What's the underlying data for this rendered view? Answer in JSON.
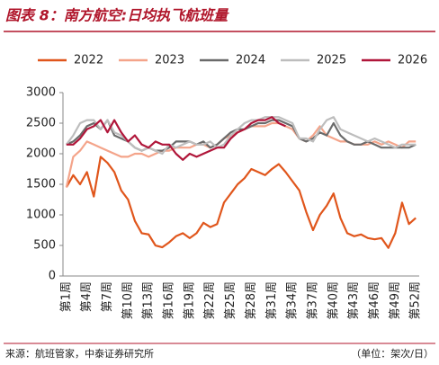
{
  "chart_data": {
    "type": "line",
    "title": "图表 8：南方航空:日均执飞航班量",
    "source": "来源：航班管家，中泰证券研究所",
    "unit_note": "（单位：架次/日）",
    "categories": [
      "第1周",
      null,
      null,
      "第4周",
      null,
      null,
      "第7周",
      null,
      null,
      "第10周",
      null,
      null,
      "第13周",
      null,
      null,
      "第16周",
      null,
      null,
      "第19周",
      null,
      null,
      "第22周",
      null,
      null,
      "第25周",
      null,
      null,
      "第28周",
      null,
      null,
      "第31周",
      null,
      null,
      "第34周",
      null,
      null,
      "第37周",
      null,
      null,
      "第40周",
      null,
      null,
      "第43周",
      null,
      null,
      "第46周",
      null,
      null,
      "第49周",
      null,
      null,
      "第52周"
    ],
    "ylim": [
      0,
      3000
    ],
    "yticks": [
      0,
      500,
      1000,
      1500,
      2000,
      2500,
      3000
    ],
    "grid": false,
    "series": [
      {
        "name": "2022",
        "color": "#e0561c",
        "values": [
          1450,
          1650,
          1500,
          1700,
          1300,
          1950,
          1850,
          1700,
          1400,
          1250,
          900,
          700,
          680,
          500,
          470,
          550,
          650,
          700,
          620,
          700,
          870,
          800,
          850,
          1200,
          1350,
          1500,
          1600,
          1750,
          1700,
          1650,
          1750,
          1830,
          1700,
          1550,
          1400,
          1050,
          750,
          1000,
          1150,
          1350,
          950,
          700,
          650,
          680,
          620,
          600,
          620,
          460,
          700,
          1200,
          850,
          950
        ]
      },
      {
        "name": "2023",
        "color": "#f4a48a",
        "values": [
          1450,
          1950,
          2050,
          2200,
          2150,
          2100,
          2050,
          2000,
          1950,
          1950,
          2000,
          2000,
          1950,
          2000,
          2050,
          2050,
          2100,
          2100,
          2100,
          2150,
          2150,
          2100,
          2150,
          2250,
          2300,
          2350,
          2400,
          2450,
          2450,
          2450,
          2500,
          2500,
          2450,
          2400,
          2250,
          2200,
          2300,
          2450,
          2300,
          2250,
          2200,
          2200,
          2150,
          2150,
          2150,
          2200,
          2150,
          2200,
          2150,
          2100,
          2200,
          2200
        ]
      },
      {
        "name": "2024",
        "color": "#6b6b6b",
        "values": [
          2150,
          2200,
          2300,
          2450,
          2500,
          2400,
          2550,
          2300,
          2250,
          2200,
          2100,
          2050,
          2100,
          2050,
          2050,
          2100,
          2200,
          2200,
          2200,
          2150,
          2200,
          2100,
          2150,
          2250,
          2350,
          2400,
          2400,
          2450,
          2500,
          2500,
          2550,
          2550,
          2500,
          2450,
          2250,
          2200,
          2250,
          2350,
          2300,
          2500,
          2300,
          2200,
          2150,
          2150,
          2200,
          2150,
          2100,
          2100,
          2100,
          2100,
          2100,
          2150
        ]
      },
      {
        "name": "2025",
        "color": "#bdbdbd",
        "values": [
          2150,
          2300,
          2500,
          2550,
          2550,
          2400,
          2550,
          2350,
          2300,
          2200,
          2100,
          2050,
          2100,
          2050,
          2000,
          2150,
          2100,
          2150,
          2200,
          2150,
          2150,
          2200,
          2100,
          2150,
          2300,
          2400,
          2500,
          2550,
          2550,
          2600,
          2600,
          2600,
          2550,
          2500,
          2250,
          2250,
          2200,
          2400,
          2550,
          2600,
          2400,
          2350,
          2300,
          2250,
          2200,
          2250,
          2200,
          2150,
          2100,
          2150,
          2150,
          2150
        ]
      },
      {
        "name": "2026",
        "color": "#b0163a",
        "values": [
          2150,
          2150,
          2250,
          2400,
          2450,
          2550,
          2350,
          2550,
          2350,
          2200,
          2300,
          2150,
          2100,
          2200,
          2150,
          2150,
          2000,
          1900,
          2000,
          1950,
          2000,
          2050,
          2100,
          2100,
          2250,
          2350,
          2400,
          2500,
          2550,
          2550,
          2600,
          2500,
          2450,
          null,
          null,
          null,
          null,
          null,
          null,
          null,
          null,
          null,
          null,
          null,
          null,
          null,
          null,
          null,
          null,
          null,
          null,
          null
        ]
      }
    ]
  }
}
